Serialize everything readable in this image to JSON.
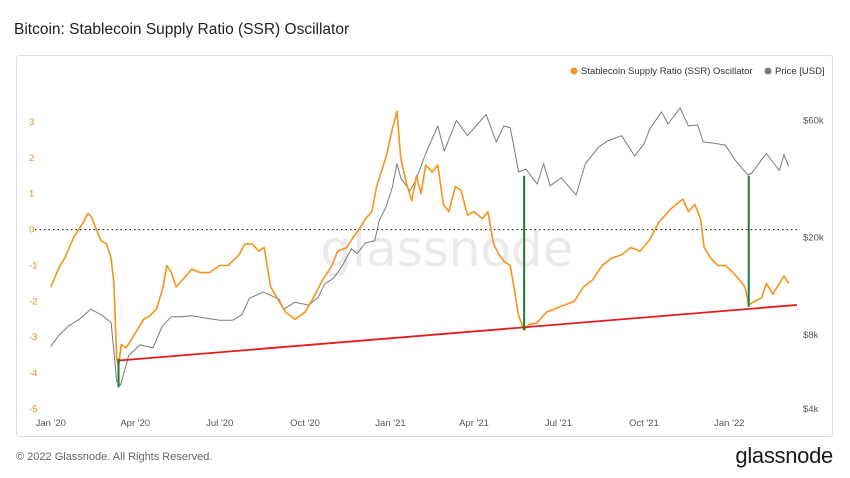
{
  "page": {
    "title": "Bitcoin: Stablecoin Supply Ratio (SSR) Oscillator",
    "copyright": "© 2022 Glassnode. All Rights Reserved.",
    "logo_text": "glassnode",
    "watermark": "glassnode"
  },
  "chart_data": {
    "type": "line",
    "series": [
      {
        "name": "Stablecoin Supply Ratio (SSR) Oscillator",
        "axis": "left",
        "color": "#f7931a",
        "points": [
          [
            "2020-01-01",
            -1.6
          ],
          [
            "2020-01-06",
            -1.3
          ],
          [
            "2020-01-11",
            -1.0
          ],
          [
            "2020-01-16",
            -0.8
          ],
          [
            "2020-01-21",
            -0.5
          ],
          [
            "2020-01-26",
            -0.2
          ],
          [
            "2020-01-31",
            0.0
          ],
          [
            "2020-02-05",
            0.2
          ],
          [
            "2020-02-10",
            0.45
          ],
          [
            "2020-02-14",
            0.35
          ],
          [
            "2020-02-19",
            0.0
          ],
          [
            "2020-02-24",
            -0.3
          ],
          [
            "2020-03-01",
            -0.4
          ],
          [
            "2020-03-06",
            -0.8
          ],
          [
            "2020-03-09",
            -1.5
          ],
          [
            "2020-03-12",
            -3.6
          ],
          [
            "2020-03-14",
            -3.8
          ],
          [
            "2020-03-17",
            -3.2
          ],
          [
            "2020-03-22",
            -3.3
          ],
          [
            "2020-03-27",
            -3.1
          ],
          [
            "2020-04-03",
            -2.8
          ],
          [
            "2020-04-10",
            -2.5
          ],
          [
            "2020-04-17",
            -2.4
          ],
          [
            "2020-04-24",
            -2.2
          ],
          [
            "2020-05-01",
            -1.6
          ],
          [
            "2020-05-05",
            -1.0
          ],
          [
            "2020-05-10",
            -1.2
          ],
          [
            "2020-05-15",
            -1.6
          ],
          [
            "2020-05-22",
            -1.4
          ],
          [
            "2020-06-01",
            -1.1
          ],
          [
            "2020-06-10",
            -1.2
          ],
          [
            "2020-06-20",
            -1.2
          ],
          [
            "2020-07-01",
            -1.0
          ],
          [
            "2020-07-10",
            -1.0
          ],
          [
            "2020-07-22",
            -0.7
          ],
          [
            "2020-07-28",
            -0.4
          ],
          [
            "2020-08-05",
            -0.4
          ],
          [
            "2020-08-12",
            -0.6
          ],
          [
            "2020-08-18",
            -0.5
          ],
          [
            "2020-08-25",
            -1.6
          ],
          [
            "2020-09-03",
            -2.0
          ],
          [
            "2020-09-10",
            -2.3
          ],
          [
            "2020-09-20",
            -2.5
          ],
          [
            "2020-10-01",
            -2.3
          ],
          [
            "2020-10-10",
            -1.9
          ],
          [
            "2020-10-20",
            -1.4
          ],
          [
            "2020-10-30",
            -1.0
          ],
          [
            "2020-11-05",
            -0.6
          ],
          [
            "2020-11-15",
            -0.5
          ],
          [
            "2020-11-22",
            -0.2
          ],
          [
            "2020-11-28",
            0.0
          ],
          [
            "2020-12-05",
            0.3
          ],
          [
            "2020-12-12",
            0.5
          ],
          [
            "2020-12-17",
            1.2
          ],
          [
            "2020-12-22",
            1.6
          ],
          [
            "2020-12-28",
            2.1
          ],
          [
            "2021-01-03",
            2.8
          ],
          [
            "2021-01-08",
            3.3
          ],
          [
            "2021-01-12",
            2.0
          ],
          [
            "2021-01-18",
            1.3
          ],
          [
            "2021-01-24",
            0.8
          ],
          [
            "2021-01-29",
            1.5
          ],
          [
            "2021-02-03",
            1.0
          ],
          [
            "2021-02-08",
            1.8
          ],
          [
            "2021-02-15",
            1.6
          ],
          [
            "2021-02-21",
            1.8
          ],
          [
            "2021-02-27",
            0.7
          ],
          [
            "2021-03-05",
            0.5
          ],
          [
            "2021-03-12",
            1.2
          ],
          [
            "2021-03-18",
            1.1
          ],
          [
            "2021-03-25",
            0.4
          ],
          [
            "2021-04-01",
            0.5
          ],
          [
            "2021-04-10",
            0.3
          ],
          [
            "2021-04-16",
            0.5
          ],
          [
            "2021-04-22",
            -0.4
          ],
          [
            "2021-04-28",
            -0.7
          ],
          [
            "2021-05-04",
            -0.9
          ],
          [
            "2021-05-10",
            -1.0
          ],
          [
            "2021-05-14",
            -1.6
          ],
          [
            "2021-05-19",
            -2.4
          ],
          [
            "2021-05-25",
            -2.8
          ],
          [
            "2021-05-30",
            -2.65
          ],
          [
            "2021-06-08",
            -2.6
          ],
          [
            "2021-06-18",
            -2.3
          ],
          [
            "2021-06-28",
            -2.2
          ],
          [
            "2021-07-08",
            -2.1
          ],
          [
            "2021-07-18",
            -2.0
          ],
          [
            "2021-07-28",
            -1.6
          ],
          [
            "2021-08-07",
            -1.4
          ],
          [
            "2021-08-17",
            -1.0
          ],
          [
            "2021-08-27",
            -0.8
          ],
          [
            "2021-09-07",
            -0.7
          ],
          [
            "2021-09-17",
            -0.5
          ],
          [
            "2021-09-27",
            -0.6
          ],
          [
            "2021-10-07",
            -0.3
          ],
          [
            "2021-10-17",
            0.2
          ],
          [
            "2021-10-24",
            0.4
          ],
          [
            "2021-10-31",
            0.6
          ],
          [
            "2021-11-07",
            0.75
          ],
          [
            "2021-11-12",
            0.85
          ],
          [
            "2021-11-18",
            0.5
          ],
          [
            "2021-11-25",
            0.7
          ],
          [
            "2021-12-01",
            0.3
          ],
          [
            "2021-12-05",
            -0.5
          ],
          [
            "2021-12-12",
            -0.8
          ],
          [
            "2021-12-20",
            -1.0
          ],
          [
            "2021-12-28",
            -1.0
          ],
          [
            "2022-01-05",
            -1.2
          ],
          [
            "2022-01-12",
            -1.4
          ],
          [
            "2022-01-18",
            -1.6
          ],
          [
            "2022-01-22",
            -2.1
          ],
          [
            "2022-01-28",
            -2.0
          ],
          [
            "2022-02-05",
            -1.9
          ],
          [
            "2022-02-10",
            -1.5
          ],
          [
            "2022-02-17",
            -1.8
          ],
          [
            "2022-02-24",
            -1.5
          ],
          [
            "2022-03-01",
            -1.3
          ],
          [
            "2022-03-06",
            -1.5
          ]
        ]
      },
      {
        "name": "Price [USD]",
        "axis": "right",
        "color": "#7a7a7a",
        "points": [
          [
            "2020-01-01",
            7200
          ],
          [
            "2020-01-10",
            8000
          ],
          [
            "2020-01-20",
            8700
          ],
          [
            "2020-02-01",
            9300
          ],
          [
            "2020-02-13",
            10200
          ],
          [
            "2020-02-24",
            9700
          ],
          [
            "2020-03-06",
            9000
          ],
          [
            "2020-03-12",
            5200
          ],
          [
            "2020-03-16",
            5000
          ],
          [
            "2020-03-25",
            6600
          ],
          [
            "2020-04-06",
            7300
          ],
          [
            "2020-04-20",
            7100
          ],
          [
            "2020-04-30",
            8700
          ],
          [
            "2020-05-10",
            9500
          ],
          [
            "2020-05-20",
            9500
          ],
          [
            "2020-06-01",
            9600
          ],
          [
            "2020-06-15",
            9400
          ],
          [
            "2020-07-01",
            9200
          ],
          [
            "2020-07-15",
            9200
          ],
          [
            "2020-07-25",
            9700
          ],
          [
            "2020-08-02",
            11300
          ],
          [
            "2020-08-17",
            12000
          ],
          [
            "2020-09-03",
            11200
          ],
          [
            "2020-09-08",
            10200
          ],
          [
            "2020-09-20",
            10900
          ],
          [
            "2020-10-05",
            10600
          ],
          [
            "2020-10-15",
            11400
          ],
          [
            "2020-10-22",
            12900
          ],
          [
            "2020-11-01",
            13700
          ],
          [
            "2020-11-10",
            15300
          ],
          [
            "2020-11-20",
            18000
          ],
          [
            "2020-11-26",
            17200
          ],
          [
            "2020-12-05",
            19000
          ],
          [
            "2020-12-15",
            19400
          ],
          [
            "2020-12-20",
            23500
          ],
          [
            "2020-12-27",
            26500
          ],
          [
            "2021-01-03",
            32000
          ],
          [
            "2021-01-08",
            40000
          ],
          [
            "2021-01-12",
            35000
          ],
          [
            "2021-01-22",
            31000
          ],
          [
            "2021-01-28",
            34000
          ],
          [
            "2021-02-08",
            44000
          ],
          [
            "2021-02-21",
            57000
          ],
          [
            "2021-02-28",
            45000
          ],
          [
            "2021-03-13",
            60000
          ],
          [
            "2021-03-25",
            52000
          ],
          [
            "2021-04-05",
            58000
          ],
          [
            "2021-04-14",
            63500
          ],
          [
            "2021-04-25",
            49000
          ],
          [
            "2021-05-03",
            57000
          ],
          [
            "2021-05-10",
            56000
          ],
          [
            "2021-05-13",
            49000
          ],
          [
            "2021-05-19",
            37000
          ],
          [
            "2021-05-27",
            38000
          ],
          [
            "2021-06-08",
            33000
          ],
          [
            "2021-06-15",
            40000
          ],
          [
            "2021-06-22",
            32500
          ],
          [
            "2021-07-04",
            35000
          ],
          [
            "2021-07-20",
            29800
          ],
          [
            "2021-07-30",
            40000
          ],
          [
            "2021-08-14",
            47000
          ],
          [
            "2021-08-23",
            49500
          ],
          [
            "2021-09-07",
            52000
          ],
          [
            "2021-09-21",
            43000
          ],
          [
            "2021-10-01",
            48000
          ],
          [
            "2021-10-07",
            55000
          ],
          [
            "2021-10-20",
            65000
          ],
          [
            "2021-10-27",
            58000
          ],
          [
            "2021-11-09",
            67500
          ],
          [
            "2021-11-18",
            57000
          ],
          [
            "2021-11-28",
            57500
          ],
          [
            "2021-12-04",
            49000
          ],
          [
            "2021-12-15",
            48500
          ],
          [
            "2021-12-28",
            47500
          ],
          [
            "2022-01-07",
            41500
          ],
          [
            "2022-01-21",
            36000
          ],
          [
            "2022-01-25",
            36500
          ],
          [
            "2022-02-05",
            41500
          ],
          [
            "2022-02-10",
            44000
          ],
          [
            "2022-02-24",
            37500
          ],
          [
            "2022-03-01",
            43500
          ],
          [
            "2022-03-06",
            39000
          ]
        ]
      }
    ],
    "left_axis": {
      "min": -5,
      "max": 3.5,
      "ticks": [
        "3",
        "2",
        "1",
        "0",
        "-1",
        "-2",
        "-3",
        "-4",
        "-5"
      ]
    },
    "right_axis": {
      "scale": "log",
      "min": 4000,
      "max": 70000,
      "ticks": [
        "$60k",
        "$20k",
        "$8k",
        "$4k"
      ]
    },
    "x_axis": {
      "start": "2019-12-15",
      "end": "2022-03-15",
      "ticks": [
        "Jan '20",
        "Apr '20",
        "Jul '20",
        "Oct '20",
        "Jan '21",
        "Apr '21",
        "Jul '21",
        "Oct '21",
        "Jan '22"
      ]
    },
    "zero_line": {
      "value": 0,
      "style": "dotted"
    },
    "trendline": {
      "color": "#e01e1e",
      "from": [
        "2020-03-14",
        -3.65
      ],
      "to": [
        "2022-03-15",
        -2.1
      ]
    },
    "markers": {
      "color": "#1a7a3c",
      "items": [
        {
          "date": "2020-03-14",
          "from": -3.6,
          "to": -4.4
        },
        {
          "date": "2021-05-25",
          "from": 1.5,
          "to": -2.8
        },
        {
          "date": "2022-01-22",
          "from": 1.5,
          "to": -2.15
        }
      ]
    },
    "legend": {
      "placement": "top-right"
    }
  }
}
